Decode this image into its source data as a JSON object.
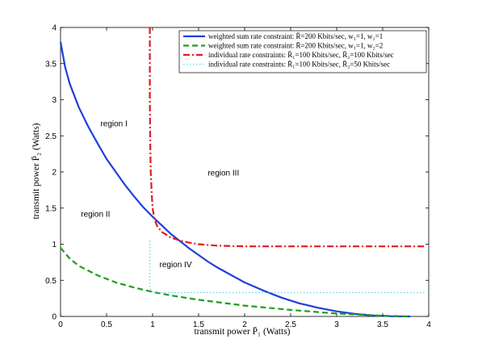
{
  "chart_data": {
    "type": "line",
    "xlabel": "transmit power P̄₁ (Watts)",
    "ylabel": "transmit power P̄₂ (Watts)",
    "xlim": [
      0,
      4
    ],
    "ylim": [
      0,
      4
    ],
    "xticks": [
      "0",
      "0.5",
      "1",
      "1.5",
      "2",
      "2.5",
      "3",
      "3.5",
      "4"
    ],
    "yticks": [
      "0",
      "0.5",
      "1",
      "1.5",
      "2",
      "2.5",
      "3",
      "3.5",
      "4"
    ],
    "grid": false,
    "legend_position": "top-right",
    "series": [
      {
        "name": "weighted sum rate constraint: R̄=200 Kbits/sec, w₁=1, w₂=1",
        "color": "#1f3fdc",
        "style": "solid",
        "x": [
          0,
          0.05,
          0.1,
          0.2,
          0.3,
          0.4,
          0.5,
          0.6,
          0.7,
          0.8,
          0.9,
          1.0,
          1.1,
          1.2,
          1.3,
          1.4,
          1.5,
          1.6,
          1.7,
          1.8,
          1.9,
          2.0,
          2.2,
          2.4,
          2.6,
          2.8,
          3.0,
          3.2,
          3.4,
          3.6,
          3.8
        ],
        "y": [
          3.8,
          3.45,
          3.22,
          2.89,
          2.63,
          2.4,
          2.18,
          2.0,
          1.82,
          1.66,
          1.51,
          1.38,
          1.26,
          1.14,
          1.04,
          0.94,
          0.85,
          0.76,
          0.68,
          0.61,
          0.54,
          0.47,
          0.36,
          0.26,
          0.18,
          0.12,
          0.07,
          0.035,
          0.012,
          0.002,
          0.0
        ]
      },
      {
        "name": "weighted sum rate constraint: R̄=200 Kbits/sec, w₁=1, w₂=2",
        "color": "#1e9e1e",
        "style": "dashed",
        "x": [
          0,
          0.1,
          0.2,
          0.4,
          0.6,
          0.8,
          1.0,
          1.2,
          1.5,
          2.0,
          2.5,
          3.0,
          3.5,
          3.8
        ],
        "y": [
          0.95,
          0.8,
          0.7,
          0.57,
          0.47,
          0.4,
          0.34,
          0.29,
          0.23,
          0.15,
          0.09,
          0.04,
          0.01,
          0.0
        ]
      },
      {
        "name": "individual rate constraints: R̄₁=100 Kbits/sec, R̄₂=100 Kbits/sec",
        "color": "#e41a1a",
        "style": "dashdot",
        "x": [
          0.97,
          0.97,
          0.975,
          0.98,
          0.99,
          1.0,
          1.02,
          1.05,
          1.1,
          1.2,
          1.3,
          1.4,
          1.5,
          1.7,
          2.0,
          2.5,
          3.0,
          3.5,
          3.96
        ],
        "y": [
          4.0,
          3.0,
          2.4,
          2.0,
          1.7,
          1.5,
          1.35,
          1.25,
          1.17,
          1.09,
          1.05,
          1.02,
          1.0,
          0.98,
          0.97,
          0.97,
          0.97,
          0.97,
          0.97
        ]
      },
      {
        "name": "individual rate constraints: R̄₁=100 Kbits/sec, R̄₂=50 Kbits/sec",
        "color": "#5fd4ea",
        "style": "dotted",
        "x": [
          0.97,
          0.97,
          0.98,
          1.0,
          1.1,
          1.5,
          2.0,
          2.5,
          3.0,
          3.5,
          3.96
        ],
        "y": [
          1.05,
          0.4,
          0.36,
          0.34,
          0.33,
          0.33,
          0.33,
          0.33,
          0.33,
          0.33,
          0.33
        ]
      }
    ],
    "annotations": [
      {
        "text": "region I",
        "x": 0.58,
        "y": 2.63
      },
      {
        "text": "region II",
        "x": 0.38,
        "y": 1.38
      },
      {
        "text": "region III",
        "x": 1.77,
        "y": 1.95
      },
      {
        "text": "region IV",
        "x": 1.25,
        "y": 0.68
      }
    ]
  }
}
